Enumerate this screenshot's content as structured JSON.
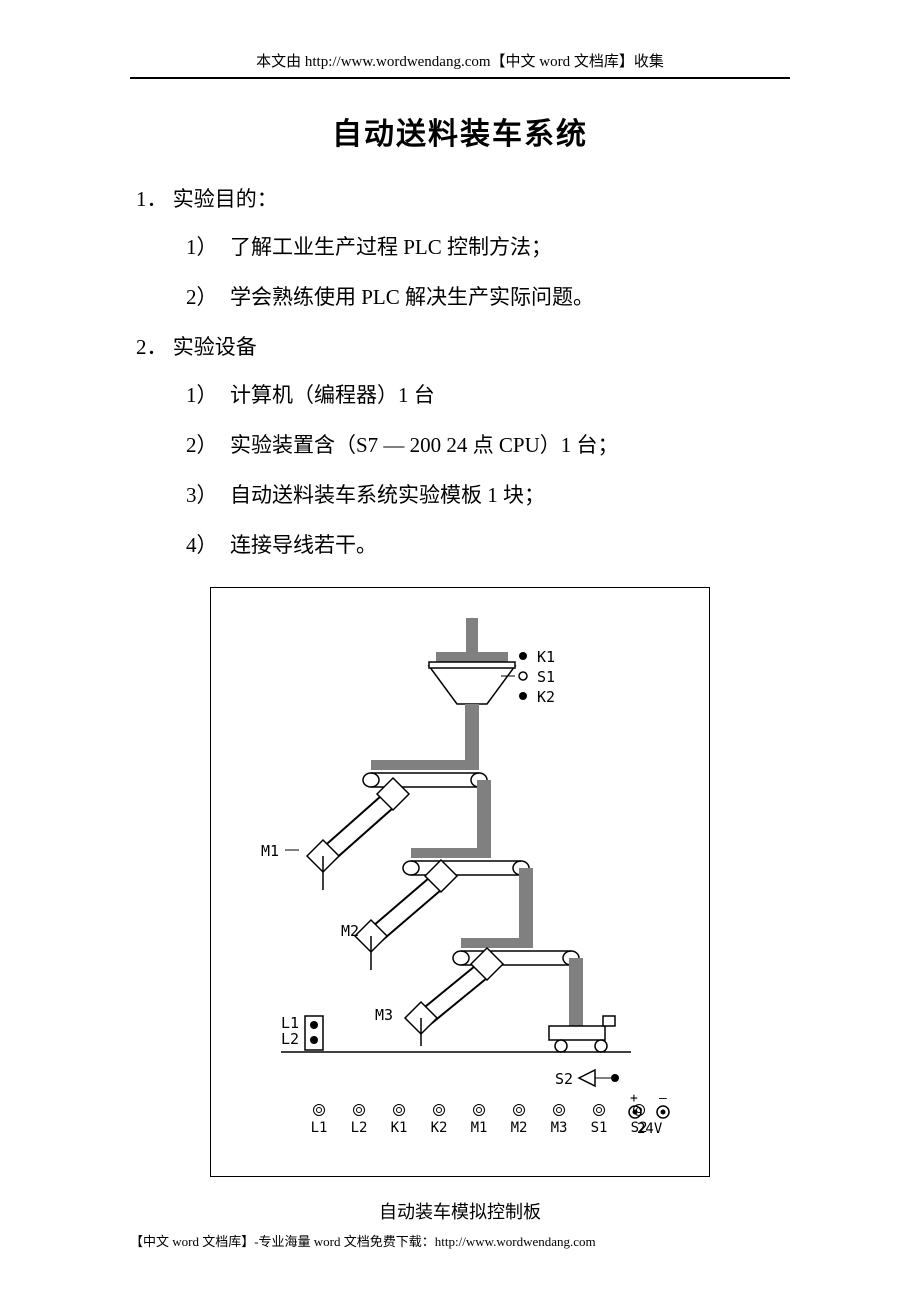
{
  "header": "本文由 http://www.wordwendang.com【中文 word 文档库】收集",
  "title": "自动送料装车系统",
  "section1": {
    "heading": "1．  实验目的：",
    "items": [
      {
        "num": "1）",
        "text": "了解工业生产过程 PLC 控制方法；"
      },
      {
        "num": "2）",
        "text": "学会熟练使用 PLC 解决生产实际问题。"
      }
    ]
  },
  "section2": {
    "heading": "2．  实验设备",
    "items": [
      {
        "num": "1）",
        "text": "计算机（编程器）1 台"
      },
      {
        "num": "2）",
        "text": "实验装置含（S7 — 200 24 点 CPU）1 台；"
      },
      {
        "num": "3）",
        "text": "自动送料装车系统实验模板 1 块；"
      },
      {
        "num": "4）",
        "text": "连接导线若干。"
      }
    ]
  },
  "figure": {
    "caption": "自动装车模拟控制板",
    "labels": {
      "K1": "K1",
      "S1": "S1",
      "K2": "K2",
      "M1": "M1",
      "M2": "M2",
      "M3": "M3",
      "L1": "L1",
      "L2": "L2",
      "S2": "S2",
      "V24": "24V",
      "plus": "+",
      "minus": "–"
    },
    "terminals": [
      "L1",
      "L2",
      "K1",
      "K2",
      "M1",
      "M2",
      "M3",
      "S1",
      "S2"
    ],
    "colors": {
      "gray": "#808080",
      "black": "#000000",
      "white": "#ffffff"
    }
  },
  "footer": "【中文 word 文档库】-专业海量 word 文档免费下载：http://www.wordwendang.com"
}
